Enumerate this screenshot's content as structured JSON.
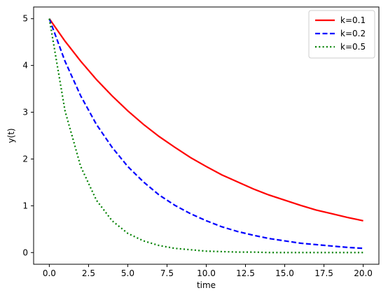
{
  "chart_data": {
    "type": "line",
    "title": "",
    "xlabel": "time",
    "ylabel": "y(t)",
    "xlim": [
      -1,
      21
    ],
    "ylim": [
      -0.25,
      5.25
    ],
    "x_ticks": [
      "0.0",
      "2.5",
      "5.0",
      "7.5",
      "10.0",
      "12.5",
      "15.0",
      "17.5",
      "20.0"
    ],
    "y_ticks": [
      "0",
      "1",
      "2",
      "3",
      "4",
      "5"
    ],
    "grid": false,
    "legend_position": "top-right",
    "x": [
      0,
      1,
      2,
      3,
      4,
      5,
      6,
      7,
      8,
      9,
      10,
      11,
      12,
      13,
      14,
      15,
      16,
      17,
      18,
      19,
      20
    ],
    "series": [
      {
        "name": "k=0.1",
        "color": "#ff0000",
        "style": "solid",
        "values": [
          5.0,
          4.52,
          4.09,
          3.7,
          3.35,
          3.03,
          2.74,
          2.48,
          2.25,
          2.03,
          1.84,
          1.66,
          1.51,
          1.36,
          1.23,
          1.12,
          1.01,
          0.91,
          0.83,
          0.75,
          0.68
        ]
      },
      {
        "name": "k=0.2",
        "color": "#0000ff",
        "style": "dashed",
        "values": [
          5.0,
          4.09,
          3.35,
          2.74,
          2.25,
          1.84,
          1.51,
          1.23,
          1.01,
          0.83,
          0.68,
          0.55,
          0.45,
          0.37,
          0.3,
          0.25,
          0.2,
          0.17,
          0.14,
          0.11,
          0.09
        ]
      },
      {
        "name": "k=0.5",
        "color": "#008000",
        "style": "dotted",
        "values": [
          5.0,
          3.03,
          1.84,
          1.12,
          0.68,
          0.41,
          0.25,
          0.15,
          0.09,
          0.06,
          0.03,
          0.02,
          0.01,
          0.01,
          0.0,
          0.0,
          0.0,
          0.0,
          0.0,
          0.0,
          0.0
        ]
      }
    ]
  }
}
